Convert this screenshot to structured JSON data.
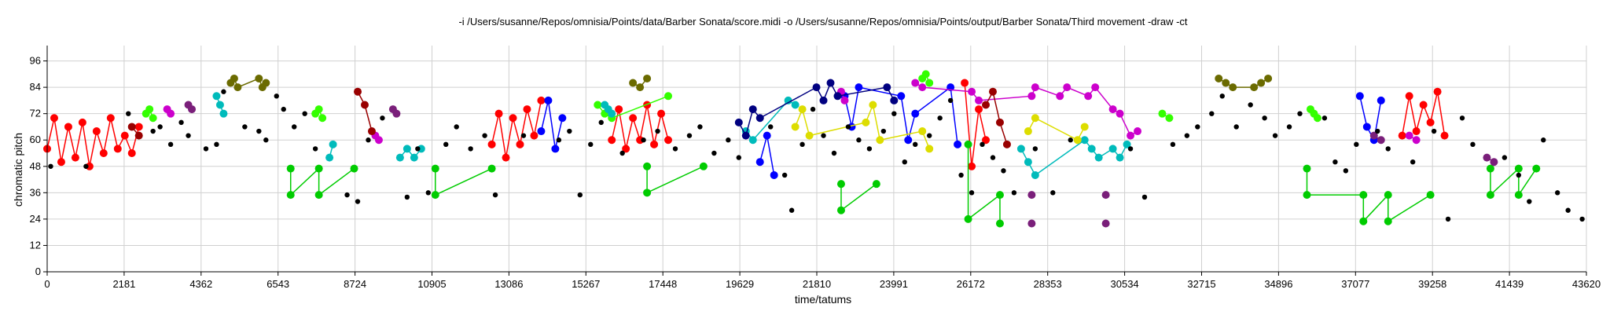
{
  "chart_data": {
    "type": "scatter",
    "title": "-i /Users/susanne/Repos/omnisia/Points/data/Barber Sonata/score.midi -o /Users/susanne/Repos/omnisia/Points/output/Barber Sonata/Third movement -draw -ct",
    "xlabel": "time/tatums",
    "ylabel": "chromatic pitch",
    "xlim": [
      0,
      43620
    ],
    "ylim": [
      0,
      103
    ],
    "xticks": [
      "0",
      "2181",
      "4362",
      "6543",
      "8724",
      "10905",
      "13086",
      "15267",
      "17448",
      "19629",
      "21810",
      "23991",
      "26172",
      "28353",
      "30534",
      "32715",
      "34896",
      "37077",
      "39258",
      "41439",
      "43620"
    ],
    "yticks": [
      "0",
      "12",
      "24",
      "36",
      "48",
      "60",
      "72",
      "84",
      "96"
    ],
    "grid": true,
    "colors": {
      "red": "#ff0000",
      "green": "#00cc00",
      "lime": "#33ff00",
      "blue": "#0000ff",
      "cyan": "#00bbbb",
      "yellow": "#dddd00",
      "magenta": "#cc00cc",
      "purple": "#7a1f7a",
      "olive": "#6b6b00",
      "black": "#000000",
      "darkred": "#990000",
      "navy": "#000080"
    },
    "series": [
      {
        "color": "red",
        "x": [
          0,
          200,
          400,
          600,
          800,
          1000,
          1200,
          1400,
          1600,
          1800,
          2000,
          2200,
          2400,
          2600,
          12600,
          12800,
          13000,
          13200,
          13400,
          13600,
          13800,
          14000,
          16000,
          16200,
          16400,
          16600,
          16800,
          17000,
          17200,
          17400,
          17600,
          26000,
          26200,
          26400,
          26600,
          38400,
          38600,
          38800,
          39000,
          39200,
          39400,
          39600
        ],
        "y": [
          56,
          70,
          50,
          66,
          52,
          68,
          48,
          64,
          54,
          70,
          56,
          62,
          54,
          66,
          58,
          72,
          52,
          70,
          58,
          74,
          62,
          78,
          60,
          74,
          56,
          70,
          60,
          76,
          58,
          72,
          60,
          86,
          48,
          74,
          60,
          62,
          80,
          64,
          76,
          68,
          82,
          62
        ]
      },
      {
        "color": "blue",
        "x": [
          14000,
          14200,
          14400,
          14600,
          20200,
          20400,
          20600,
          22600,
          22800,
          23000,
          24200,
          24400,
          24600,
          25600,
          25800,
          37200,
          37400,
          37600,
          37800
        ],
        "y": [
          64,
          78,
          56,
          70,
          50,
          62,
          44,
          80,
          66,
          84,
          80,
          60,
          72,
          84,
          58,
          80,
          66,
          60,
          78
        ]
      },
      {
        "color": "lime",
        "x": [
          2800,
          2900,
          3000,
          7600,
          7700,
          7800,
          15600,
          15800,
          16000,
          17600,
          24800,
          24900,
          25000,
          31600,
          31800,
          35800,
          35900,
          36000
        ],
        "y": [
          72,
          74,
          70,
          72,
          74,
          70,
          76,
          72,
          70,
          80,
          88,
          90,
          86,
          72,
          70,
          74,
          72,
          70
        ]
      },
      {
        "color": "green",
        "x": [
          6900,
          6900,
          7700,
          7700,
          8700,
          11000,
          11000,
          12600,
          17000,
          17000,
          18600,
          22500,
          22500,
          23500,
          26100,
          26100,
          27000,
          27000,
          35700,
          35700,
          37300,
          37300,
          38000,
          38000,
          39200,
          40900,
          40900,
          41700,
          41700,
          42200
        ],
        "y": [
          47,
          35,
          47,
          35,
          47,
          47,
          35,
          47,
          48,
          36,
          48,
          40,
          28,
          40,
          58,
          24,
          35,
          22,
          47,
          35,
          35,
          23,
          35,
          23,
          35,
          47,
          35,
          47,
          35,
          47
        ]
      },
      {
        "color": "cyan",
        "x": [
          4800,
          4900,
          5000,
          8000,
          8100,
          10000,
          10200,
          10400,
          10600,
          15800,
          15900,
          16000,
          19800,
          20000,
          21000,
          21200,
          27600,
          27800,
          28000,
          29400,
          29600,
          29800,
          30200,
          30400,
          30600
        ],
        "y": [
          80,
          76,
          72,
          52,
          58,
          52,
          56,
          52,
          56,
          76,
          74,
          72,
          64,
          60,
          78,
          76,
          56,
          50,
          44,
          60,
          56,
          52,
          56,
          52,
          58
        ]
      },
      {
        "color": "yellow",
        "x": [
          21200,
          21400,
          21600,
          23200,
          23400,
          23600,
          24800,
          25000,
          27800,
          28000,
          29200,
          29400
        ],
        "y": [
          66,
          74,
          62,
          68,
          76,
          60,
          64,
          56,
          64,
          70,
          60,
          66
        ]
      },
      {
        "color": "magenta",
        "x": [
          3400,
          3500,
          9300,
          9400,
          22500,
          22600,
          24600,
          24800,
          26200,
          26400,
          27900,
          28000,
          28700,
          28900,
          29500,
          29700,
          30200,
          30400,
          30700,
          30900,
          38600,
          38800
        ],
        "y": [
          74,
          72,
          62,
          60,
          82,
          78,
          86,
          84,
          82,
          78,
          80,
          84,
          80,
          84,
          80,
          84,
          74,
          72,
          62,
          64,
          62,
          60
        ]
      },
      {
        "color": "purple",
        "x": [
          4000,
          4100,
          9800,
          9900,
          27900,
          30000,
          27900,
          30000,
          37600,
          37800,
          40800,
          41000
        ],
        "y": [
          76,
          74,
          74,
          72,
          35,
          35,
          22,
          22,
          62,
          60,
          52,
          50
        ]
      },
      {
        "color": "olive",
        "x": [
          5200,
          5300,
          5400,
          6000,
          6100,
          6200,
          16600,
          16800,
          17000,
          33200,
          33400,
          33600,
          34200,
          34400,
          34600
        ],
        "y": [
          86,
          88,
          84,
          88,
          84,
          86,
          86,
          84,
          88,
          88,
          86,
          84,
          84,
          86,
          88
        ]
      },
      {
        "color": "darkred",
        "x": [
          2400,
          2600,
          8800,
          9000,
          9200,
          26600,
          26800,
          27000,
          27200
        ],
        "y": [
          66,
          62,
          82,
          76,
          64,
          76,
          82,
          68,
          58
        ]
      },
      {
        "color": "navy",
        "x": [
          19600,
          19800,
          20000,
          20200,
          21800,
          22000,
          22200,
          22400,
          23800,
          24000
        ],
        "y": [
          68,
          62,
          74,
          70,
          84,
          78,
          86,
          80,
          84,
          78
        ]
      },
      {
        "color": "black",
        "x": [
          100,
          1100,
          2300,
          3000,
          3200,
          3500,
          3800,
          4000,
          4500,
          4800,
          5000,
          5600,
          6000,
          6200,
          6500,
          6700,
          7000,
          7300,
          7600,
          8500,
          8800,
          9100,
          9500,
          10200,
          10500,
          10800,
          11300,
          11600,
          12000,
          12400,
          12700,
          13500,
          14500,
          14800,
          15100,
          15400,
          15700,
          16300,
          16900,
          17300,
          17800,
          18200,
          18500,
          18900,
          19300,
          19600,
          20500,
          20900,
          21100,
          21400,
          21700,
          22000,
          22300,
          22700,
          23000,
          23300,
          23700,
          24000,
          24300,
          24600,
          25000,
          25300,
          25600,
          25900,
          26200,
          26500,
          26800,
          27100,
          27400,
          28000,
          28500,
          29000,
          30700,
          31100,
          31900,
          32300,
          32600,
          33000,
          33300,
          33700,
          34100,
          34500,
          34800,
          35200,
          35500,
          36200,
          36500,
          36800,
          37100,
          37700,
          38000,
          38700,
          39300,
          39700,
          40100,
          40400,
          41300,
          41700,
          42000,
          42400,
          42800,
          43100,
          43500
        ],
        "y": [
          48,
          48,
          72,
          64,
          66,
          58,
          68,
          62,
          56,
          58,
          82,
          66,
          64,
          60,
          80,
          74,
          66,
          72,
          56,
          35,
          32,
          60,
          70,
          34,
          56,
          36,
          58,
          66,
          56,
          62,
          35,
          62,
          60,
          64,
          35,
          58,
          68,
          54,
          60,
          64,
          56,
          62,
          66,
          54,
          60,
          52,
          66,
          44,
          28,
          58,
          74,
          62,
          54,
          66,
          60,
          56,
          64,
          72,
          50,
          58,
          62,
          70,
          78,
          44,
          36,
          58,
          52,
          46,
          36,
          56,
          36,
          60,
          56,
          34,
          58,
          62,
          66,
          72,
          80,
          66,
          76,
          70,
          62,
          66,
          72,
          70,
          50,
          46,
          58,
          64,
          56,
          50,
          64,
          24,
          70,
          58,
          52,
          44,
          32,
          60,
          36,
          28,
          24
        ]
      }
    ]
  }
}
